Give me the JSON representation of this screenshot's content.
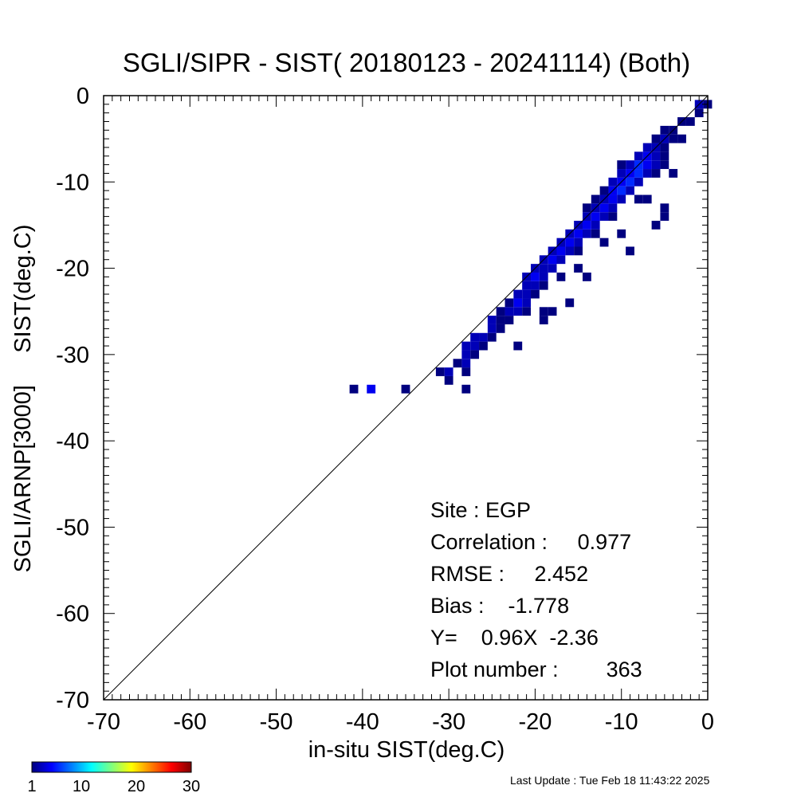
{
  "colors": {
    "background": "#ffffff",
    "axis": "#000000",
    "one_to_one_line": "#000000",
    "colormap": [
      "#00007f",
      "#0000ff",
      "#007fff",
      "#00ffff",
      "#7fff7f",
      "#ffff00",
      "#ff7f00",
      "#ff0000",
      "#7f0000"
    ]
  },
  "chart_data": {
    "type": "heatmap",
    "title": "SGLI/SIPR - SIST( 20180123 - 20241114) (Both)",
    "xlabel": "in-situ SIST(deg.C)",
    "ylabel": "SGLI/ARNP[3000]     SIST(deg.C)",
    "xlim": [
      -70,
      0
    ],
    "ylim": [
      -70,
      0
    ],
    "x_ticks": [
      "-70",
      "-60",
      "-50",
      "-40",
      "-30",
      "-20",
      "-10",
      "0"
    ],
    "y_ticks": [
      "-70",
      "-60",
      "-50",
      "-40",
      "-30",
      "-20",
      "-10",
      "0"
    ],
    "x_tick_values": [
      -70,
      -60,
      -50,
      -40,
      -30,
      -20,
      -10,
      0
    ],
    "y_tick_values": [
      -70,
      -60,
      -50,
      -40,
      -30,
      -20,
      -10,
      0
    ],
    "bin_size": 1,
    "one_to_one_line": true,
    "grid": false,
    "colorbar": {
      "min": 1,
      "max": 30,
      "tick_labels": [
        "1",
        "10",
        "20",
        "30"
      ],
      "tick_values": [
        1,
        10,
        20,
        30
      ],
      "placement": "bottom-left"
    },
    "cells": [
      [
        -41,
        -34,
        1
      ],
      [
        -39,
        -34,
        3
      ],
      [
        -35,
        -34,
        1
      ],
      [
        -30,
        -33,
        1
      ],
      [
        -28,
        -34,
        1
      ],
      [
        -31,
        -32,
        1
      ],
      [
        -30,
        -32,
        2
      ],
      [
        -28,
        -32,
        1
      ],
      [
        -29,
        -31,
        1
      ],
      [
        -28,
        -31,
        2
      ],
      [
        -28,
        -30,
        2
      ],
      [
        -27,
        -30,
        1
      ],
      [
        -28,
        -29,
        2
      ],
      [
        -27,
        -29,
        2
      ],
      [
        -26,
        -29,
        1
      ],
      [
        -27,
        -28,
        2
      ],
      [
        -26,
        -28,
        2
      ],
      [
        -25,
        -28,
        1
      ],
      [
        -22,
        -29,
        1
      ],
      [
        -25,
        -27,
        2
      ],
      [
        -24,
        -27,
        1
      ],
      [
        -25,
        -26,
        2
      ],
      [
        -24,
        -26,
        1
      ],
      [
        -23,
        -26,
        1
      ],
      [
        -19,
        -26,
        1
      ],
      [
        -24,
        -25,
        1
      ],
      [
        -23,
        -25,
        2
      ],
      [
        -22,
        -25,
        2
      ],
      [
        -21,
        -25,
        1
      ],
      [
        -19,
        -25,
        1
      ],
      [
        -18,
        -25,
        1
      ],
      [
        -23,
        -24,
        1
      ],
      [
        -22,
        -24,
        3
      ],
      [
        -21,
        -24,
        2
      ],
      [
        -16,
        -24,
        1
      ],
      [
        -22,
        -23,
        2
      ],
      [
        -21,
        -23,
        2
      ],
      [
        -20,
        -23,
        1
      ],
      [
        -21,
        -22,
        2
      ],
      [
        -20,
        -22,
        2
      ],
      [
        -19,
        -22,
        1
      ],
      [
        -21,
        -21,
        2
      ],
      [
        -20,
        -21,
        3
      ],
      [
        -19,
        -21,
        2
      ],
      [
        -20,
        -20,
        2
      ],
      [
        -19,
        -20,
        2
      ],
      [
        -18,
        -20,
        2
      ],
      [
        -14,
        -21,
        1
      ],
      [
        -19,
        -19,
        2
      ],
      [
        -18,
        -19,
        3
      ],
      [
        -17,
        -19,
        2
      ],
      [
        -15,
        -20,
        1
      ],
      [
        -18,
        -18,
        2
      ],
      [
        -17,
        -18,
        3
      ],
      [
        -16,
        -18,
        2
      ],
      [
        -15,
        -18,
        1
      ],
      [
        -17,
        -17,
        2
      ],
      [
        -16,
        -17,
        3
      ],
      [
        -15,
        -17,
        2
      ],
      [
        -16,
        -16,
        2
      ],
      [
        -15,
        -16,
        3
      ],
      [
        -14,
        -16,
        2
      ],
      [
        -13,
        -16,
        1
      ],
      [
        -9,
        -18,
        1
      ],
      [
        -12,
        -17,
        1
      ],
      [
        -15,
        -15,
        2
      ],
      [
        -14,
        -15,
        3
      ],
      [
        -13,
        -15,
        2
      ],
      [
        -10,
        -16,
        1
      ],
      [
        -14,
        -14,
        2
      ],
      [
        -13,
        -14,
        3
      ],
      [
        -12,
        -14,
        2
      ],
      [
        -11,
        -14,
        1
      ],
      [
        -14,
        -13,
        1
      ],
      [
        -13,
        -13,
        2
      ],
      [
        -12,
        -13,
        3
      ],
      [
        -11,
        -13,
        2
      ],
      [
        -6,
        -15,
        1
      ],
      [
        -5,
        -14,
        1
      ],
      [
        -12,
        -12,
        2
      ],
      [
        -11,
        -12,
        3
      ],
      [
        -10,
        -12,
        2
      ],
      [
        -5,
        -13,
        1
      ],
      [
        -13,
        -12,
        1
      ],
      [
        -11,
        -11,
        3
      ],
      [
        -10,
        -11,
        4
      ],
      [
        -9,
        -11,
        2
      ],
      [
        -8,
        -12,
        1
      ],
      [
        -7,
        -12,
        1
      ],
      [
        -11,
        -10,
        2
      ],
      [
        -10,
        -10,
        3
      ],
      [
        -9,
        -10,
        4
      ],
      [
        -8,
        -10,
        2
      ],
      [
        -12,
        -11,
        1
      ],
      [
        -10,
        -9,
        2
      ],
      [
        -9,
        -9,
        3
      ],
      [
        -8,
        -9,
        4
      ],
      [
        -7,
        -9,
        2
      ],
      [
        -6,
        -9,
        1
      ],
      [
        -4,
        -9,
        1
      ],
      [
        -9,
        -8,
        2
      ],
      [
        -8,
        -8,
        4
      ],
      [
        -7,
        -8,
        3
      ],
      [
        -6,
        -8,
        2
      ],
      [
        -5,
        -8,
        1
      ],
      [
        -10,
        -8,
        1
      ],
      [
        -8,
        -7,
        2
      ],
      [
        -7,
        -7,
        3
      ],
      [
        -6,
        -7,
        2
      ],
      [
        -5,
        -7,
        1
      ],
      [
        -7,
        -6,
        2
      ],
      [
        -6,
        -6,
        2
      ],
      [
        -5,
        -6,
        1
      ],
      [
        -6,
        -5,
        1
      ],
      [
        -5,
        -5,
        2
      ],
      [
        -4,
        -5,
        1
      ],
      [
        -3,
        -5,
        1
      ],
      [
        -5,
        -4,
        1
      ],
      [
        -4,
        -4,
        1
      ],
      [
        -3,
        -3,
        1
      ],
      [
        -2,
        -3,
        1
      ],
      [
        -1,
        -2,
        1
      ],
      [
        -1,
        -1,
        2
      ],
      [
        0,
        -1,
        1
      ],
      [
        -17,
        -21,
        1
      ]
    ],
    "stats": {
      "site": "Site : EGP",
      "correlation": "Correlation :     0.977",
      "rmse": "RMSE :     2.452",
      "bias": "Bias :    -1.778",
      "regression": "Y=    0.96X  -2.36",
      "plot_number": "Plot number :        363"
    },
    "footer": "Last Update : Tue Feb 18 11:43:22 2025"
  }
}
